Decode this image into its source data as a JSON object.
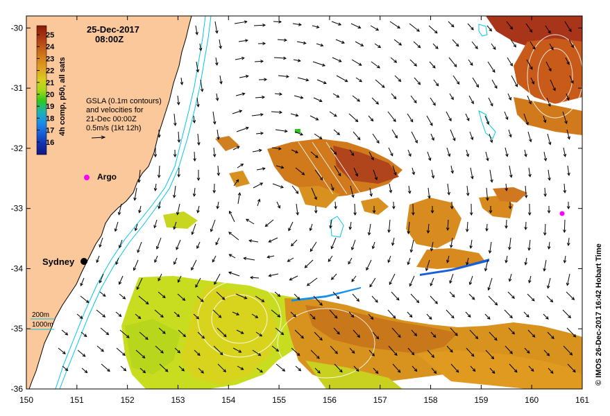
{
  "title": {
    "date": "25-Dec-2017",
    "time": "08:00Z"
  },
  "colorbar": {
    "label": "4h comp, p50, all sats",
    "ticks": [
      "25",
      "24",
      "23",
      "22",
      "21",
      "20",
      "19",
      "18",
      "17",
      "16"
    ],
    "colors": [
      "#8b1a0a",
      "#a83410",
      "#c05a18",
      "#d4801c",
      "#e0a020",
      "#d8cc20",
      "#a8d818",
      "#2ec81c",
      "#1cb4b0",
      "#1890e8",
      "#1860d8",
      "#1030b0",
      "#101880"
    ]
  },
  "legend": {
    "line1": "GSLA (0.1m contours)",
    "line2": "and velocities for",
    "line3": "21-Dec 00:00Z",
    "line4": "0.5m/s (1kt 12h)",
    "bathy_200": "200m",
    "bathy_1000": "1000m"
  },
  "places": {
    "argo": "Argo",
    "city": "Sydney"
  },
  "axes": {
    "x_ticks": [
      "150",
      "151",
      "152",
      "153",
      "154",
      "155",
      "156",
      "157",
      "158",
      "159",
      "160",
      "161"
    ],
    "y_ticks": [
      "-30",
      "-31",
      "-32",
      "-33",
      "-34",
      "-35",
      "-36"
    ],
    "xlim": [
      150,
      161
    ],
    "ylim": [
      -36,
      -29.8
    ]
  },
  "credit": "© IMOS 26-Dec-2017 16:42 Hobart Time",
  "colors": {
    "land": "#fac89a",
    "bathy": "#00c8e6",
    "argo": "#ff00ff",
    "sst_warm": "#d4801c",
    "sst_cool": "#c8dc20"
  }
}
